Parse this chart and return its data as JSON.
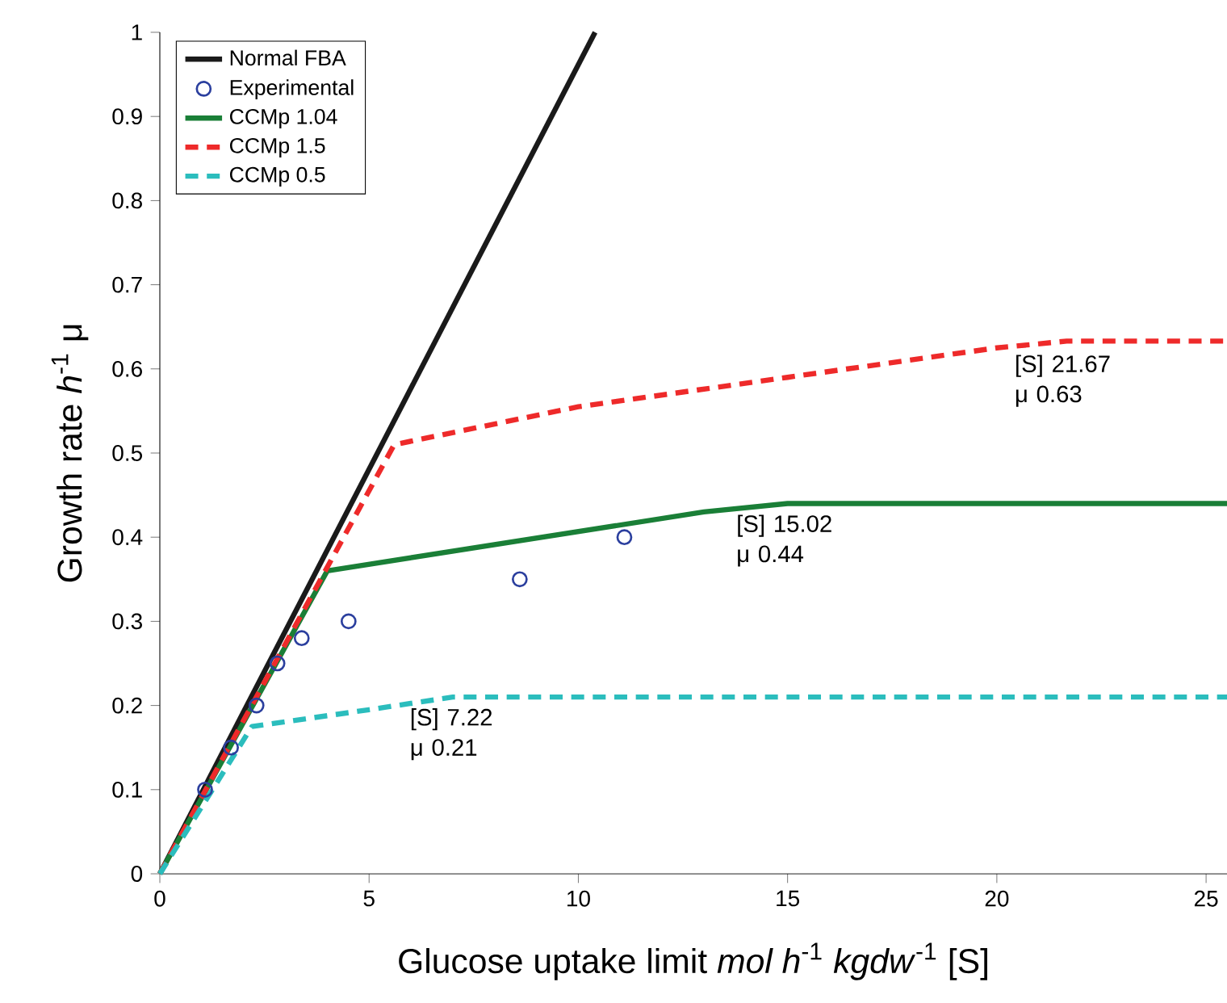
{
  "chart_data": {
    "type": "line",
    "xlabel": "Glucose uptake limit *mol h*$^{-1}$ *kgdw*$^{-1}$ [S]",
    "ylabel": "Growth rate *h*$^{-1}$ μ",
    "xlim": [
      0,
      25.5
    ],
    "ylim": [
      0,
      1
    ],
    "xticks": [
      0,
      5,
      10,
      15,
      20,
      25
    ],
    "yticks": [
      0,
      0.1,
      0.2,
      0.3,
      0.4,
      0.5,
      0.6,
      0.7,
      0.8,
      0.9,
      1
    ],
    "grid": false,
    "legend": "top left",
    "series": [
      {
        "name": "Normal FBA",
        "color": "#1a1a1a",
        "line_style": "solid",
        "marker": "none",
        "x": [
          0,
          10.4
        ],
        "values": [
          0,
          1.0
        ]
      },
      {
        "name": "Experimental",
        "type": "scatter",
        "color": "#2b3f9e",
        "marker": "circle",
        "x": [
          1.08,
          1.7,
          2.31,
          2.81,
          3.39,
          4.51,
          8.6,
          11.1
        ],
        "values": [
          0.1,
          0.15,
          0.2,
          0.25,
          0.28,
          0.3,
          0.35,
          0.4
        ]
      },
      {
        "name": "CCMp 1.04",
        "color": "#1a7f37",
        "line_style": "solid",
        "marker": "none",
        "x": [
          0,
          4.0,
          13,
          15,
          15.02,
          25.5
        ],
        "values": [
          0,
          0.36,
          0.43,
          0.44,
          0.44,
          0.44
        ]
      },
      {
        "name": "CCMp 1.5",
        "color": "#ee2a2a",
        "line_style": "dashed",
        "marker": "none",
        "x": [
          0,
          5.6,
          10,
          15,
          20,
          21.67,
          25.5
        ],
        "values": [
          0,
          0.51,
          0.555,
          0.59,
          0.625,
          0.633,
          0.633
        ]
      },
      {
        "name": "CCMp 0.5",
        "color": "#2bbdbd",
        "line_style": "dashed",
        "marker": "none",
        "x": [
          0,
          2.2,
          5,
          7,
          7.22,
          25.5
        ],
        "values": [
          0,
          0.175,
          0.195,
          0.21,
          0.21,
          0.21
        ]
      }
    ],
    "annotations": [
      {
        "text": "[S] 21.67 μ 0.63",
        "x": 21.67,
        "y": 0.63
      },
      {
        "text": "[S] 15.02 μ 0.44",
        "x": 15.02,
        "y": 0.44
      },
      {
        "text": "[S] 7.22 μ 0.21",
        "x": 7.22,
        "y": 0.21
      }
    ]
  }
}
